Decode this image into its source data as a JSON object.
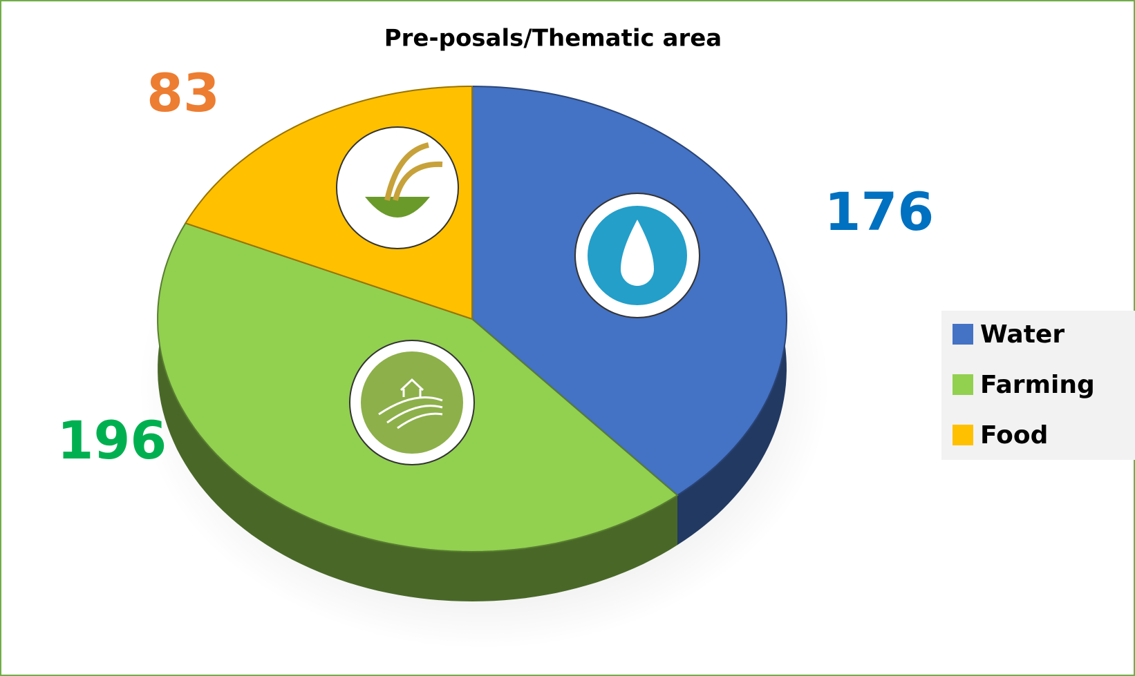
{
  "chart_data": {
    "type": "pie",
    "title": "Pre-posals/Thematic area",
    "categories": [
      "Water",
      "Farming",
      "Food"
    ],
    "values": [
      176,
      196,
      83
    ],
    "colors": [
      "#4472c4",
      "#92d050",
      "#ffc000"
    ],
    "label_colors": [
      "#0070c0",
      "#00b050",
      "#ed7d31"
    ],
    "legend": "right",
    "three_d": true
  }
}
